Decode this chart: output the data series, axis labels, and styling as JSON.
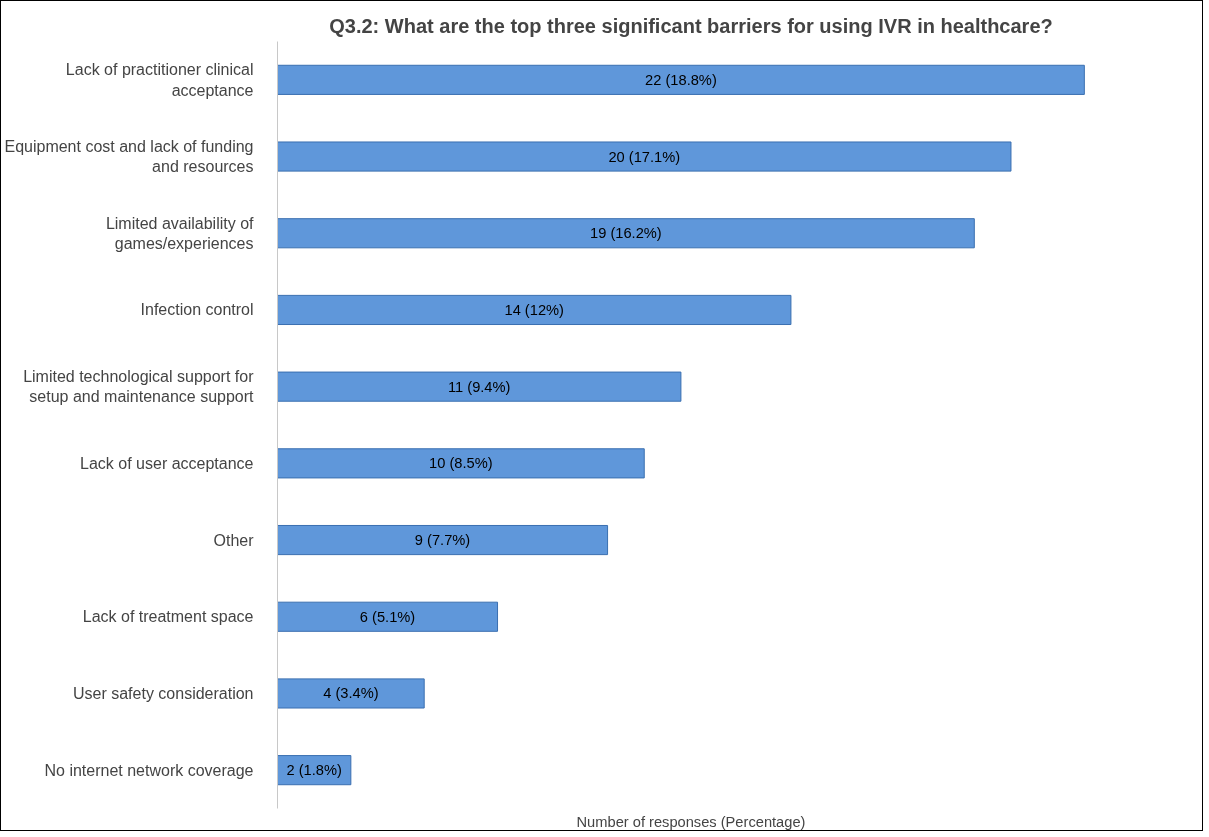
{
  "chart_data": {
    "type": "bar",
    "orientation": "horizontal",
    "title": "Q3.2: What are the top three significant barriers for using IVR in healthcare?",
    "xlabel": "Number of responses (Percentage)",
    "categories": [
      "Lack of practitioner clinical acceptance",
      "Equipment cost and lack of funding and resources",
      "Limited availability of games/experiences",
      "Infection control",
      "Limited technological support for setup and maintenance support",
      "Lack of user acceptance",
      "Other",
      "Lack of treatment space",
      "User safety consideration",
      "No internet network coverage"
    ],
    "values": [
      22,
      20,
      19,
      14,
      11,
      10,
      9,
      6,
      4,
      2
    ],
    "value_labels": [
      "22 (18.8%)",
      "20 (17.1%)",
      "19 (16.2%)",
      "14 (12%)",
      "11 (9.4%)",
      "10 (8.5%)",
      "9 (7.7%)",
      "6 (5.1%)",
      "4 (3.4%)",
      "2 (1.8%)"
    ],
    "color": "#5f97da",
    "grid": false
  }
}
